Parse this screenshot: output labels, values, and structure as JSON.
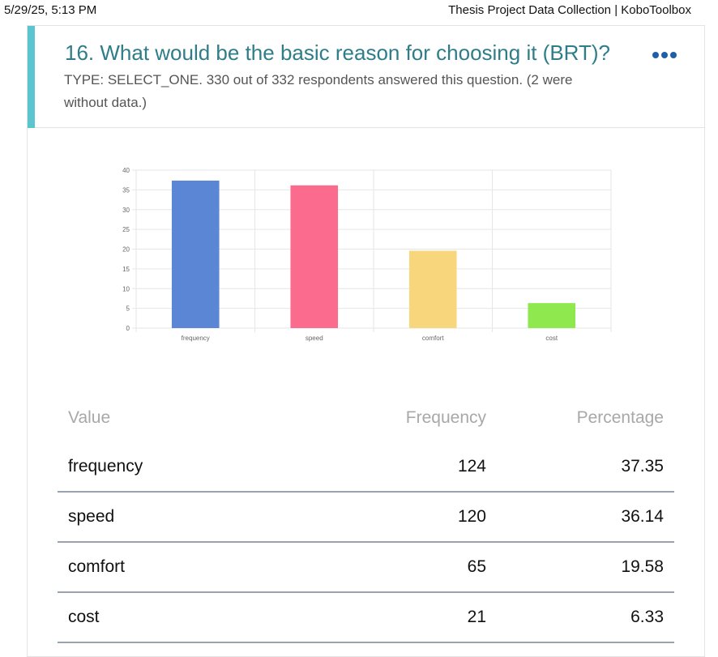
{
  "print_header": {
    "datetime": "5/29/25, 5:13 PM",
    "page_title": "Thesis Project Data Collection | KoboToolbox"
  },
  "question": {
    "title": "16. What would be the basic reason for choosing it (BRT)?",
    "meta": "TYPE: SELECT_ONE. 330 out of 332 respondents answered this question. (2 were without data.)",
    "more_icon": "more-horizontal-icon",
    "accent_color": "#5bc5cf"
  },
  "chart_data": {
    "type": "bar",
    "categories": [
      "frequency",
      "speed",
      "comfort",
      "cost"
    ],
    "values": [
      37.35,
      36.14,
      19.58,
      6.33
    ],
    "colors": [
      "#5b86d6",
      "#fb6b8e",
      "#f8d77c",
      "#8ee84e"
    ],
    "ylim": [
      0,
      40
    ],
    "yticks": [
      0,
      5,
      10,
      15,
      20,
      25,
      30,
      35,
      40
    ],
    "title": "",
    "xlabel": "",
    "ylabel": "",
    "grid": true
  },
  "table": {
    "headers": [
      "Value",
      "Frequency",
      "Percentage"
    ],
    "rows": [
      {
        "value": "frequency",
        "frequency": "124",
        "percentage": "37.35"
      },
      {
        "value": "speed",
        "frequency": "120",
        "percentage": "36.14"
      },
      {
        "value": "comfort",
        "frequency": "65",
        "percentage": "19.58"
      },
      {
        "value": "cost",
        "frequency": "21",
        "percentage": "6.33"
      }
    ]
  }
}
